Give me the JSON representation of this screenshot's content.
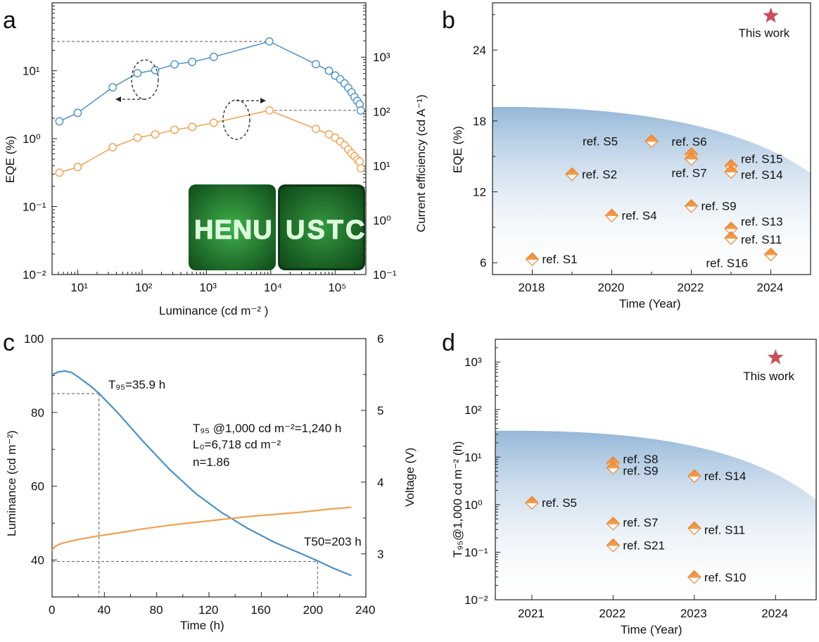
{
  "chart_data": [
    {
      "panel": "a",
      "type": "line",
      "xscale": "log",
      "xlabel": "Luminance (cd m⁻² )",
      "ylabel_left": "EQE (%)",
      "ylabel_right": "Current efficiency (cd A⁻¹)",
      "y_left_scale": "log",
      "y_right_scale": "log",
      "xlim": [
        4,
        300000
      ],
      "ylim_left": [
        0.01,
        100
      ],
      "ylim_right": [
        0.1,
        10000
      ],
      "x_ticks": [
        "10¹",
        "10²",
        "10³",
        "10⁴",
        "10⁵"
      ],
      "yl_ticks": [
        "10⁻²",
        "10⁻¹",
        "10⁰",
        "10¹"
      ],
      "yr_ticks": [
        "10⁻¹",
        "10⁰",
        "10¹",
        "10²",
        "10³"
      ],
      "inset_text": [
        "HENU",
        "USTC"
      ],
      "series": [
        {
          "color": "#4a90c8",
          "axis": "left",
          "x": [
            5.2,
            10,
            35,
            85,
            160,
            320,
            600,
            1300,
            9500,
            50000,
            80000,
            100000,
            120000,
            140000,
            160000,
            180000,
            200000,
            220000,
            240000,
            250000
          ],
          "y": [
            1.8,
            2.4,
            5.7,
            9.2,
            10.2,
            12.4,
            13.5,
            16,
            27,
            12.5,
            10,
            8.5,
            7.5,
            6.5,
            5.6,
            4.8,
            4.1,
            3.6,
            3.2,
            2.6
          ]
        },
        {
          "color": "#f0a050",
          "axis": "right",
          "x": [
            5.2,
            10,
            35,
            85,
            160,
            320,
            600,
            1300,
            9500,
            50000,
            80000,
            100000,
            120000,
            140000,
            160000,
            180000,
            200000,
            220000,
            240000,
            250000
          ],
          "y": [
            7.5,
            9.5,
            22,
            33,
            38,
            46,
            52,
            62,
            105,
            48,
            38,
            33,
            28,
            24,
            20,
            17,
            15,
            13,
            12,
            9
          ]
        }
      ]
    },
    {
      "panel": "b",
      "type": "scatter",
      "xlabel": "Time (Year)",
      "ylabel": "EQE (%)",
      "xlim": [
        2017,
        2025
      ],
      "ylim": [
        5,
        28
      ],
      "x_ticks": [
        "2018",
        "2020",
        "2022",
        "2024"
      ],
      "y_ticks": [
        "6",
        "12",
        "18",
        "24"
      ],
      "points": [
        {
          "label": "ref. S1",
          "x": 2018,
          "y": 6.3
        },
        {
          "label": "ref. S2",
          "x": 2019,
          "y": 13.5
        },
        {
          "label": "ref. S4",
          "x": 2020,
          "y": 10.0
        },
        {
          "label": "ref. S5",
          "x": 2021,
          "y": 16.3
        },
        {
          "label": "ref. S6",
          "x": 2022,
          "y": 15.2
        },
        {
          "label": "ref. S7",
          "x": 2022,
          "y": 14.8
        },
        {
          "label": "ref. S9",
          "x": 2022,
          "y": 10.8
        },
        {
          "label": "ref. S15",
          "x": 2023,
          "y": 14.2
        },
        {
          "label": "ref. S14",
          "x": 2023,
          "y": 13.7
        },
        {
          "label": "ref. S13",
          "x": 2023,
          "y": 8.9
        },
        {
          "label": "ref. S11",
          "x": 2023,
          "y": 8.1
        },
        {
          "label": "ref. S16",
          "x": 2024,
          "y": 6.7
        }
      ],
      "highlight": {
        "label": "This work",
        "x": 2024,
        "y": 26.9
      }
    },
    {
      "panel": "c",
      "type": "line",
      "xlabel": "Time (h)",
      "ylabel_left": "Luminance (cd m⁻²)",
      "ylabel_right": "Voltage (V)",
      "xlim": [
        0,
        240
      ],
      "ylim_left": [
        30,
        100
      ],
      "ylim_right": [
        2.4,
        6
      ],
      "x_ticks": [
        "0",
        "40",
        "80",
        "120",
        "160",
        "200",
        "240"
      ],
      "yl_ticks": [
        "40",
        "60",
        "80",
        "100"
      ],
      "yr_ticks": [
        "3",
        "4",
        "5",
        "6"
      ],
      "annotations": [
        "T₉₅=35.9 h",
        "T₉₅ @1,000 cd m⁻²=1,240 h",
        "L₀=6,718 cd m⁻²",
        "n=1.86",
        "T50=203 h"
      ],
      "series": [
        {
          "color": "#4a90c8",
          "axis": "left",
          "x": [
            0,
            5,
            10,
            15,
            20,
            30,
            36,
            50,
            70,
            90,
            110,
            130,
            150,
            170,
            190,
            203,
            215,
            229
          ],
          "y": [
            90.2,
            91.0,
            91.2,
            90.8,
            89.6,
            87.0,
            85.1,
            80.0,
            72.0,
            64.5,
            58.0,
            52.8,
            48.5,
            44.8,
            41.8,
            39.8,
            37.8,
            35.8
          ]
        },
        {
          "color": "#f0a050",
          "axis": "right",
          "x": [
            0,
            2,
            5,
            10,
            20,
            35,
            50,
            70,
            90,
            110,
            130,
            150,
            170,
            190,
            210,
            229
          ],
          "y": [
            3.05,
            3.1,
            3.13,
            3.16,
            3.2,
            3.25,
            3.29,
            3.35,
            3.4,
            3.44,
            3.48,
            3.52,
            3.55,
            3.58,
            3.62,
            3.65
          ]
        }
      ],
      "guides": {
        "t95": 35.9,
        "l95": 85.1,
        "t50": 203,
        "l50": 39.6
      }
    },
    {
      "panel": "d",
      "type": "scatter",
      "xlabel": "Time (Year)",
      "ylabel": "T₉₅@1,000 cd m⁻² (h)",
      "yscale": "log",
      "xlim": [
        2020.55,
        2024.5
      ],
      "ylim": [
        0.01,
        3000
      ],
      "x_ticks": [
        "2021",
        "2022",
        "2023",
        "2024"
      ],
      "y_ticks": [
        "10⁻²",
        "10⁻¹",
        "10⁰",
        "10¹",
        "10²",
        "10³"
      ],
      "points": [
        {
          "label": "ref. S5",
          "x": 2021,
          "y": 1.1
        },
        {
          "label": "ref. S8",
          "x": 2022,
          "y": 7.5
        },
        {
          "label": "ref. S9",
          "x": 2022,
          "y": 6.0
        },
        {
          "label": "ref. S7",
          "x": 2022,
          "y": 0.4
        },
        {
          "label": "ref. S21",
          "x": 2022,
          "y": 0.14
        },
        {
          "label": "ref. S14",
          "x": 2023,
          "y": 4.0
        },
        {
          "label": "ref. S11",
          "x": 2023,
          "y": 0.32
        },
        {
          "label": "ref. S10",
          "x": 2023,
          "y": 0.03
        }
      ],
      "highlight": {
        "label": "This work",
        "x": 2024,
        "y": 1240
      }
    }
  ],
  "panel_letters": [
    "a",
    "b",
    "c",
    "d"
  ]
}
